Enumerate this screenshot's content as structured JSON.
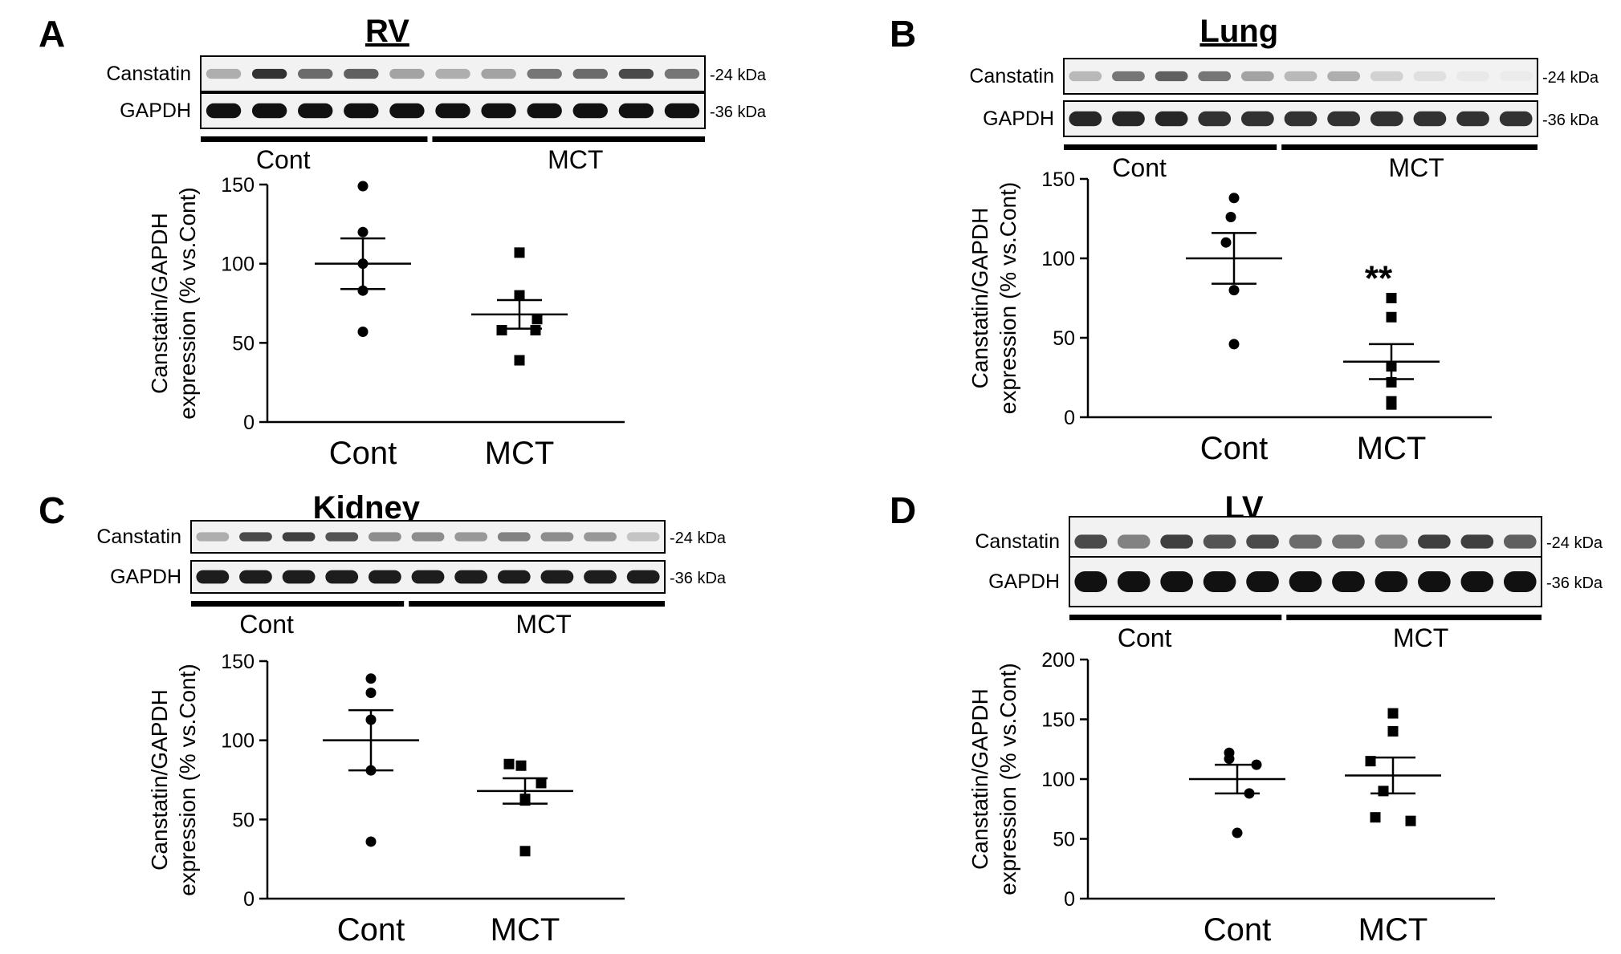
{
  "colors": {
    "ink": "#000000",
    "blot_bg": "#f2f2f2",
    "band": "#111111"
  },
  "panels": [
    {
      "letter": "A",
      "title": "RV",
      "blot": {
        "rows": [
          {
            "label": "Canstatin",
            "kda": "24 kDa",
            "intensity": [
              0.3,
              0.85,
              0.6,
              0.65,
              0.35,
              0.3,
              0.35,
              0.55,
              0.6,
              0.75,
              0.55
            ]
          },
          {
            "label": "GAPDH",
            "kda": "36 kDa",
            "intensity": [
              1,
              1,
              1,
              1,
              1,
              1,
              1,
              1,
              1,
              1,
              1
            ]
          }
        ],
        "groups": [
          {
            "label": "Cont",
            "n": 5
          },
          {
            "label": "MCT",
            "n": 6
          }
        ]
      },
      "chart_data": {
        "type": "scatter",
        "ylabel_line1": "Canstatin/GAPDH",
        "ylabel_line2": "expression (% vs.Cont)",
        "ylim": [
          0,
          150
        ],
        "yticks": [
          0,
          50,
          100,
          150
        ],
        "categories": [
          "Cont",
          "MCT"
        ],
        "series": [
          {
            "name": "Cont",
            "marker": "circle",
            "values": [
              149,
              120,
              83,
              57,
              100
            ],
            "mean": 100,
            "sem": 16
          },
          {
            "name": "MCT",
            "marker": "square",
            "values": [
              107,
              80,
              65,
              58,
              58,
              39
            ],
            "mean": 68,
            "sem": 9
          }
        ],
        "annotation": ""
      }
    },
    {
      "letter": "B",
      "title": "Lung",
      "blot": {
        "rows": [
          {
            "label": "Canstatin",
            "kda": "24 kDa",
            "intensity": [
              0.25,
              0.55,
              0.65,
              0.55,
              0.35,
              0.25,
              0.3,
              0.15,
              0.08,
              0.04,
              0.03
            ]
          },
          {
            "label": "GAPDH",
            "kda": "36 kDa",
            "intensity": [
              0.9,
              0.9,
              0.9,
              0.85,
              0.85,
              0.85,
              0.85,
              0.85,
              0.85,
              0.85,
              0.85
            ]
          }
        ],
        "groups": [
          {
            "label": "Cont",
            "n": 5
          },
          {
            "label": "MCT",
            "n": 6
          }
        ]
      },
      "chart_data": {
        "type": "scatter",
        "ylabel_line1": "Canstatin/GAPDH",
        "ylabel_line2": "expression (% vs.Cont)",
        "ylim": [
          0,
          150
        ],
        "yticks": [
          0,
          50,
          100,
          150
        ],
        "categories": [
          "Cont",
          "MCT"
        ],
        "series": [
          {
            "name": "Cont",
            "marker": "circle",
            "values": [
              138,
              126,
              110,
              80,
              46
            ],
            "mean": 100,
            "sem": 16
          },
          {
            "name": "MCT",
            "marker": "square",
            "values": [
              75,
              63,
              32,
              22,
              10,
              8
            ],
            "mean": 35,
            "sem": 11
          }
        ],
        "annotation": "**"
      }
    },
    {
      "letter": "C",
      "title": "Kidney",
      "blot": {
        "rows": [
          {
            "label": "Canstatin",
            "kda": "24 kDa",
            "intensity": [
              0.3,
              0.75,
              0.8,
              0.7,
              0.45,
              0.45,
              0.4,
              0.5,
              0.45,
              0.4,
              0.2
            ]
          },
          {
            "label": "GAPDH",
            "kda": "36 kDa",
            "intensity": [
              0.95,
              0.95,
              0.95,
              0.95,
              0.95,
              0.95,
              0.95,
              0.95,
              0.95,
              0.95,
              0.95
            ]
          }
        ],
        "groups": [
          {
            "label": "Cont",
            "n": 5
          },
          {
            "label": "MCT",
            "n": 6
          }
        ]
      },
      "chart_data": {
        "type": "scatter",
        "ylabel_line1": "Canstatin/GAPDH",
        "ylabel_line2": "expression (% vs.Cont)",
        "ylim": [
          0,
          150
        ],
        "yticks": [
          0,
          50,
          100,
          150
        ],
        "categories": [
          "Cont",
          "MCT"
        ],
        "series": [
          {
            "name": "Cont",
            "marker": "circle",
            "values": [
              139,
              130,
              113,
              81,
              36
            ],
            "mean": 100,
            "sem": 19
          },
          {
            "name": "MCT",
            "marker": "square",
            "values": [
              85,
              84,
              73,
              63,
              62,
              30
            ],
            "mean": 68,
            "sem": 8
          }
        ],
        "annotation": ""
      }
    },
    {
      "letter": "D",
      "title": "LV",
      "blot": {
        "rows": [
          {
            "label": "Canstatin",
            "kda": "24 kDa",
            "intensity": [
              0.75,
              0.5,
              0.8,
              0.7,
              0.75,
              0.6,
              0.55,
              0.5,
              0.8,
              0.8,
              0.65
            ]
          },
          {
            "label": "GAPDH",
            "kda": "36 kDa",
            "intensity": [
              1,
              1,
              1,
              1,
              1,
              1,
              1,
              1,
              1,
              1,
              1
            ]
          }
        ],
        "groups": [
          {
            "label": "Cont",
            "n": 5
          },
          {
            "label": "MCT",
            "n": 6
          }
        ]
      },
      "chart_data": {
        "type": "scatter",
        "ylabel_line1": "Canstatin/GAPDH",
        "ylabel_line2": "expression (% vs.Cont)",
        "ylim": [
          0,
          200
        ],
        "yticks": [
          0,
          50,
          100,
          150,
          200
        ],
        "categories": [
          "Cont",
          "MCT"
        ],
        "series": [
          {
            "name": "Cont",
            "marker": "circle",
            "values": [
              122,
              117,
              112,
              88,
              55
            ],
            "mean": 100,
            "sem": 12
          },
          {
            "name": "MCT",
            "marker": "square",
            "values": [
              155,
              140,
              115,
              90,
              68,
              65
            ],
            "mean": 103,
            "sem": 15
          }
        ],
        "annotation": ""
      }
    }
  ]
}
